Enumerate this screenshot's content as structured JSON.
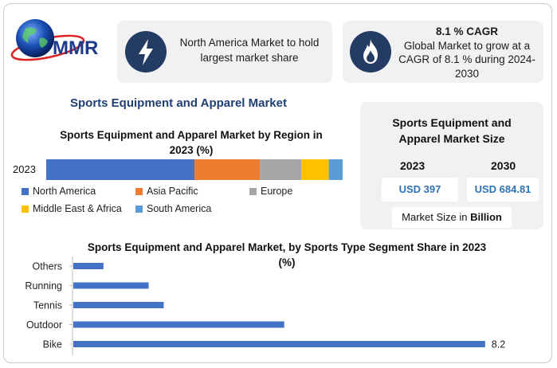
{
  "logo": {
    "text": "MMR"
  },
  "cards": {
    "north_america": {
      "icon": "lightning-icon",
      "text_line1": "North America Market to hold",
      "text_line2": "largest market share"
    },
    "cagr": {
      "icon": "flame-icon",
      "title": "8.1 % CAGR",
      "line1": "Global Market to grow at a",
      "line2": "CAGR of 8.1 % during 2024-",
      "line3": "2030"
    }
  },
  "main_title": "Sports Equipment and Apparel Market",
  "market_size": {
    "title_line1": "Sports Equipment and",
    "title_line2": "Apparel Market Size",
    "year1": "2023",
    "year2": "2030",
    "value1": "USD 397",
    "value2": "USD 684.81",
    "unit_prefix": "Market Size in ",
    "unit_bold": "Billion"
  },
  "colors": {
    "navy": "#243c64",
    "title_blue": "#1f3f73",
    "value_blue": "#2e74b5"
  },
  "chart_data": [
    {
      "type": "bar",
      "orientation": "horizontal-stacked",
      "title_line1": "Sports Equipment and Apparel Market by Region in",
      "title_line2": "2023 (%)",
      "categories": [
        "2023"
      ],
      "series": [
        {
          "name": "North America",
          "values": [
            43
          ],
          "color": "#4472c4"
        },
        {
          "name": "Asia Pacific",
          "values": [
            19
          ],
          "color": "#ed7d31"
        },
        {
          "name": "Europe",
          "values": [
            12
          ],
          "color": "#a5a5a5"
        },
        {
          "name": "Middle East & Africa",
          "values": [
            8
          ],
          "color": "#ffc000"
        },
        {
          "name": "South America",
          "values": [
            4
          ],
          "color": "#5b9bd5"
        }
      ],
      "legend": "bottom"
    },
    {
      "type": "bar",
      "orientation": "horizontal",
      "title_line1": "Sports Equipment and Apparel Market, by Sports Type Segment Share in 2023",
      "title_line2": "(%)",
      "categories": [
        "Others",
        "Running",
        "Tennis",
        "Outdoor",
        "Bike"
      ],
      "values": [
        0.6,
        1.5,
        1.8,
        4.2,
        8.2
      ],
      "data_labels": [
        "",
        "",
        "",
        "",
        "8.2"
      ],
      "xlim": [
        0,
        8.6
      ],
      "color": "#4472c4"
    }
  ]
}
